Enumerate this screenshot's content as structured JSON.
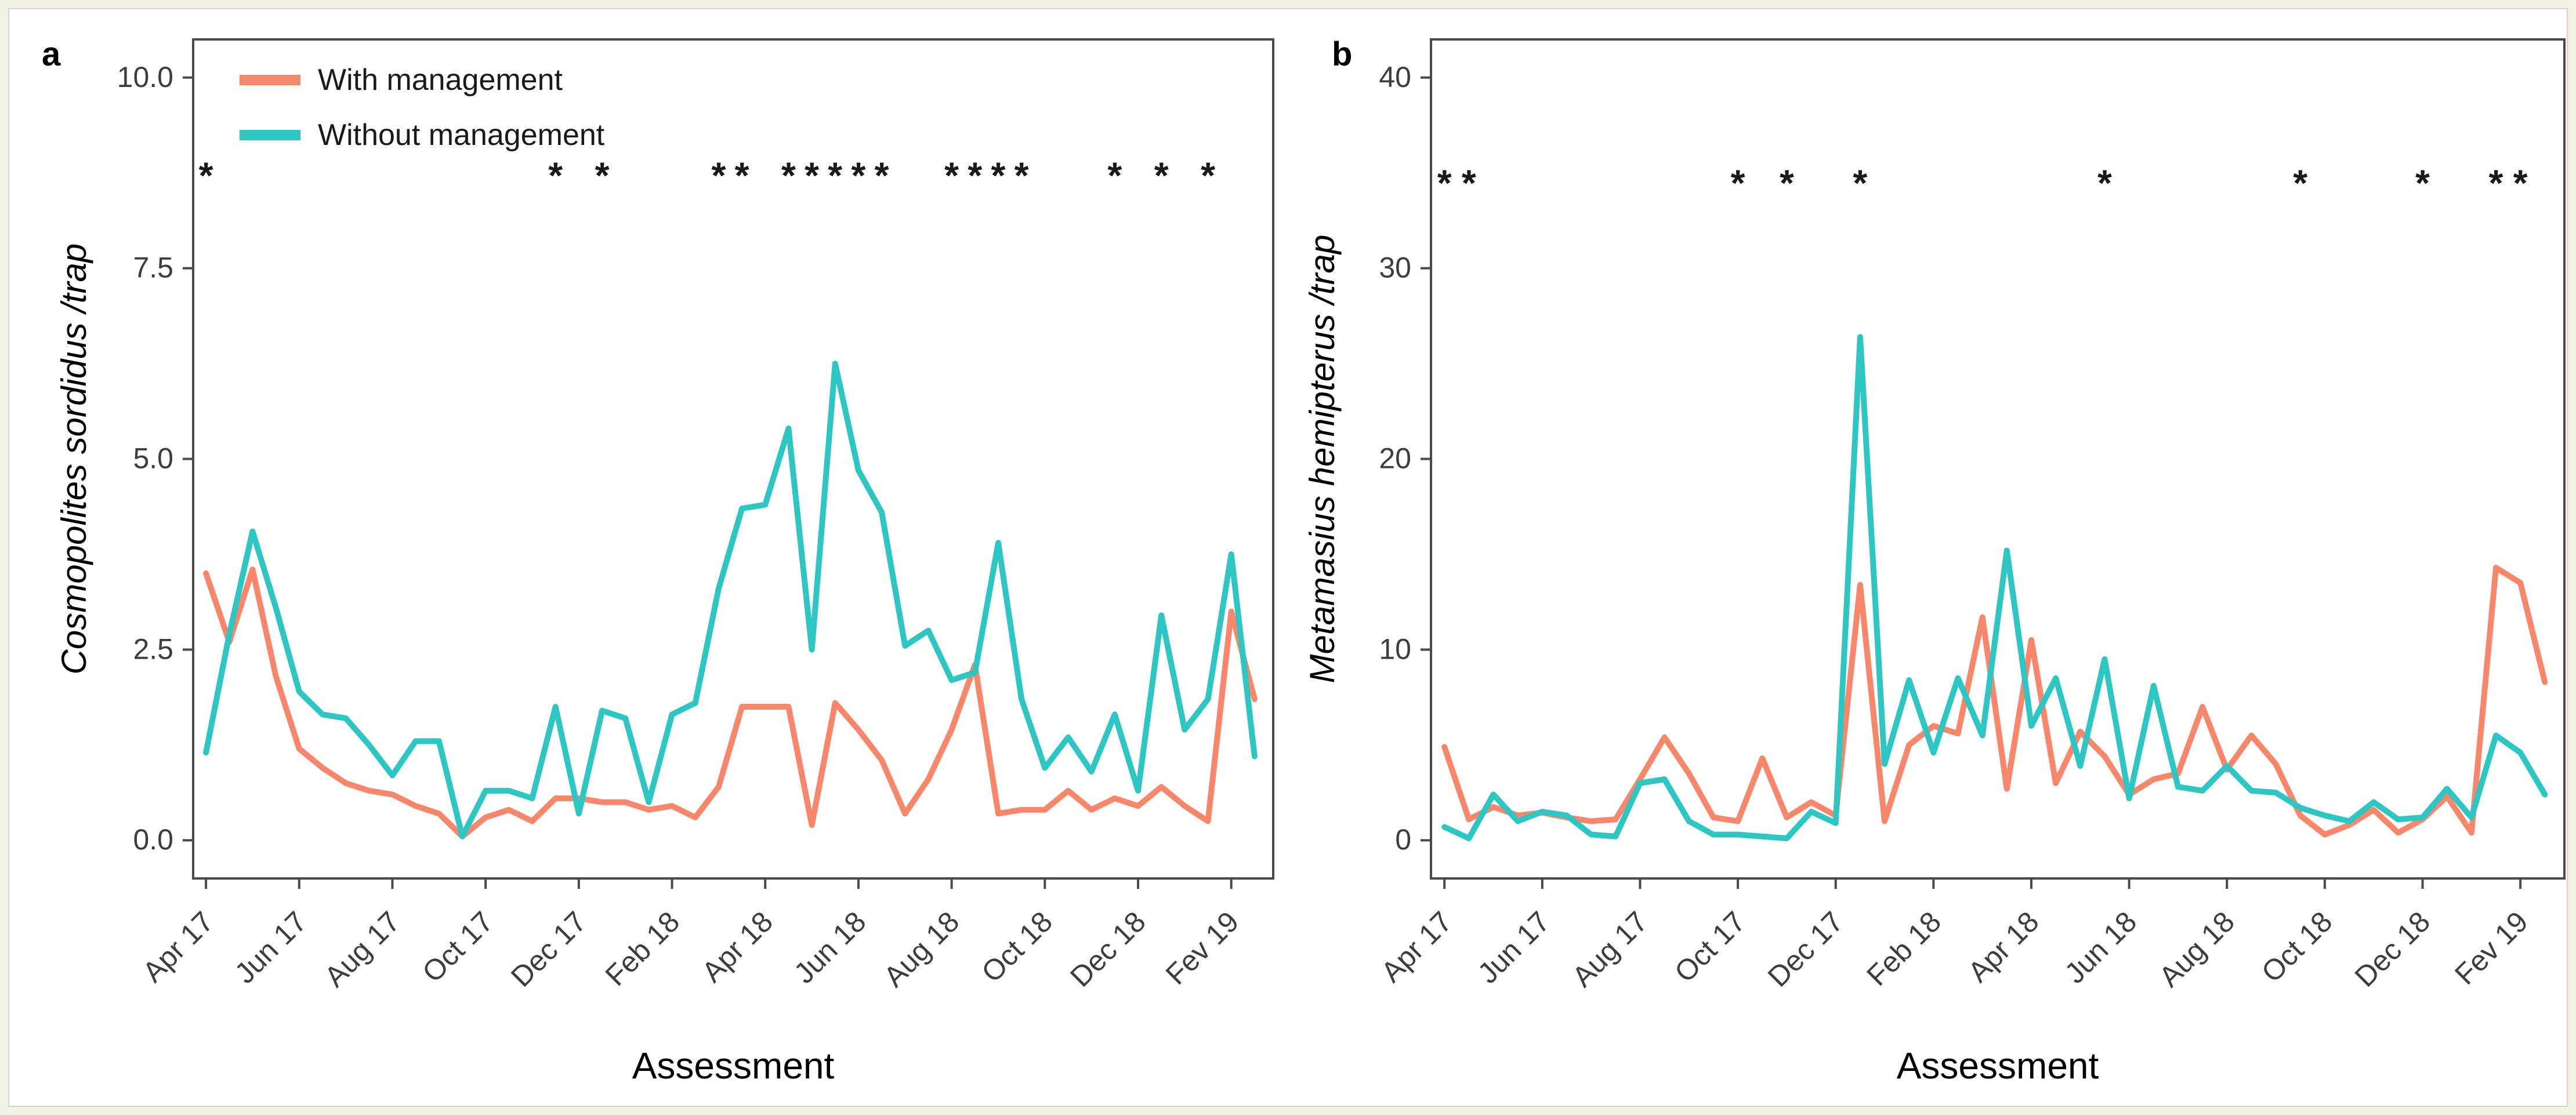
{
  "figure": {
    "outer_background": "#f3f1e4",
    "card_background": "#ffffff",
    "border_color": "#4a4a4a",
    "tick_text_color": "#3d3d3d",
    "title_text_color": "#111111",
    "asterisk_glyph": "*",
    "asterisk_color": "#1a1a1a"
  },
  "legend": {
    "items": [
      {
        "label": "With management",
        "color": "#f8866b"
      },
      {
        "label": "Without management",
        "color": "#2ec6c2"
      }
    ]
  },
  "chart_data": [
    {
      "type": "line",
      "panel_label": "a",
      "ylabel_species": "Cosmopolites sordidus",
      "ylabel_suffix": " /trap",
      "xlabel": "Assessment",
      "ylim": [
        -0.5,
        10.5
      ],
      "yticks": [
        0,
        2.5,
        5,
        7.5,
        10
      ],
      "ytick_labels": [
        "0.0",
        "2.5",
        "5.0",
        "7.5",
        "10.0"
      ],
      "x_index_range": [
        1,
        46
      ],
      "x_tick_indices": [
        1,
        5,
        9,
        13,
        17,
        21,
        25,
        29,
        33,
        37,
        41,
        45
      ],
      "x_tick_labels": [
        "Apr 17",
        "Jun 17",
        "Aug 17",
        "Oct 17",
        "Dec 17",
        "Feb 18",
        "Apr 18",
        "Jun 18",
        "Aug 18",
        "Oct 18",
        "Dec 18",
        "Fev 19"
      ],
      "grid": false,
      "legend_position": "top-left-inside",
      "show_legend": true,
      "asterisk_indices": [
        1,
        16,
        18,
        23,
        24,
        26,
        27,
        28,
        29,
        30,
        33,
        34,
        35,
        36,
        40,
        42,
        44
      ],
      "asterisk_y": 8.55,
      "series": [
        {
          "name": "With management",
          "color": "#f8866b",
          "values": [
            3.5,
            2.6,
            3.55,
            2.15,
            1.2,
            0.95,
            0.75,
            0.65,
            0.6,
            0.45,
            0.35,
            0.05,
            0.3,
            0.4,
            0.25,
            0.55,
            0.55,
            0.5,
            0.5,
            0.4,
            0.45,
            0.3,
            0.7,
            1.75,
            1.75,
            1.75,
            0.2,
            1.8,
            1.45,
            1.05,
            0.35,
            0.8,
            1.45,
            2.3,
            0.35,
            0.4,
            0.4,
            0.65,
            0.4,
            0.55,
            0.45,
            0.7,
            0.45,
            0.25,
            3.0,
            1.85
          ]
        },
        {
          "name": "Without management",
          "color": "#2ec6c2",
          "values": [
            1.15,
            2.7,
            4.05,
            3.05,
            1.95,
            1.65,
            1.6,
            1.25,
            0.85,
            1.3,
            1.3,
            0.05,
            0.65,
            0.65,
            0.55,
            1.75,
            0.35,
            1.7,
            1.6,
            0.5,
            1.65,
            1.8,
            3.3,
            4.35,
            4.4,
            5.4,
            2.5,
            6.25,
            4.85,
            4.3,
            2.55,
            2.75,
            2.1,
            2.2,
            3.9,
            1.85,
            0.95,
            1.35,
            0.9,
            1.65,
            0.65,
            2.95,
            1.45,
            1.85,
            3.75,
            1.1
          ]
        }
      ]
    },
    {
      "type": "line",
      "panel_label": "b",
      "ylabel_species": "Metamasius hemipterus",
      "ylabel_suffix": " /trap",
      "xlabel": "Assessment",
      "ylim": [
        -2,
        42
      ],
      "yticks": [
        0,
        10,
        20,
        30,
        40
      ],
      "ytick_labels": [
        "0",
        "10",
        "20",
        "30",
        "40"
      ],
      "x_index_range": [
        1,
        46
      ],
      "x_tick_indices": [
        1,
        5,
        9,
        13,
        17,
        21,
        25,
        29,
        33,
        37,
        41,
        45
      ],
      "x_tick_labels": [
        "Apr 17",
        "Jun 17",
        "Aug 17",
        "Oct 17",
        "Dec 17",
        "Feb 18",
        "Apr 18",
        "Jun 18",
        "Aug 18",
        "Oct 18",
        "Dec 18",
        "Fev 19"
      ],
      "grid": false,
      "legend_position": "none",
      "show_legend": false,
      "asterisk_indices": [
        1,
        2,
        13,
        15,
        18,
        28,
        36,
        41,
        44,
        45
      ],
      "asterisk_y": 33.8,
      "series": [
        {
          "name": "With management",
          "color": "#f8866b",
          "values": [
            4.9,
            1.1,
            1.75,
            1.3,
            1.45,
            1.2,
            1.0,
            1.1,
            3.2,
            5.4,
            3.5,
            1.2,
            1.0,
            4.3,
            1.2,
            2.0,
            1.3,
            13.4,
            1.0,
            5.0,
            6.0,
            5.6,
            11.7,
            2.7,
            10.5,
            3.0,
            5.7,
            4.4,
            2.4,
            3.2,
            3.5,
            7.0,
            3.7,
            5.5,
            4.0,
            1.3,
            0.3,
            0.8,
            1.6,
            0.4,
            1.1,
            2.3,
            0.4,
            14.3,
            13.5,
            8.3
          ]
        },
        {
          "name": "Without management",
          "color": "#2ec6c2",
          "values": [
            0.7,
            0.1,
            2.4,
            1.0,
            1.5,
            1.3,
            0.3,
            0.2,
            3.0,
            3.2,
            1.0,
            0.3,
            0.3,
            0.2,
            0.1,
            1.5,
            0.9,
            26.4,
            4.0,
            8.4,
            4.6,
            8.5,
            5.5,
            15.2,
            6.0,
            8.5,
            3.9,
            9.5,
            2.2,
            8.1,
            2.8,
            2.6,
            3.9,
            2.6,
            2.5,
            1.7,
            1.3,
            1.0,
            2.0,
            1.1,
            1.2,
            2.7,
            1.2,
            5.5,
            4.6,
            2.4
          ]
        }
      ]
    }
  ]
}
